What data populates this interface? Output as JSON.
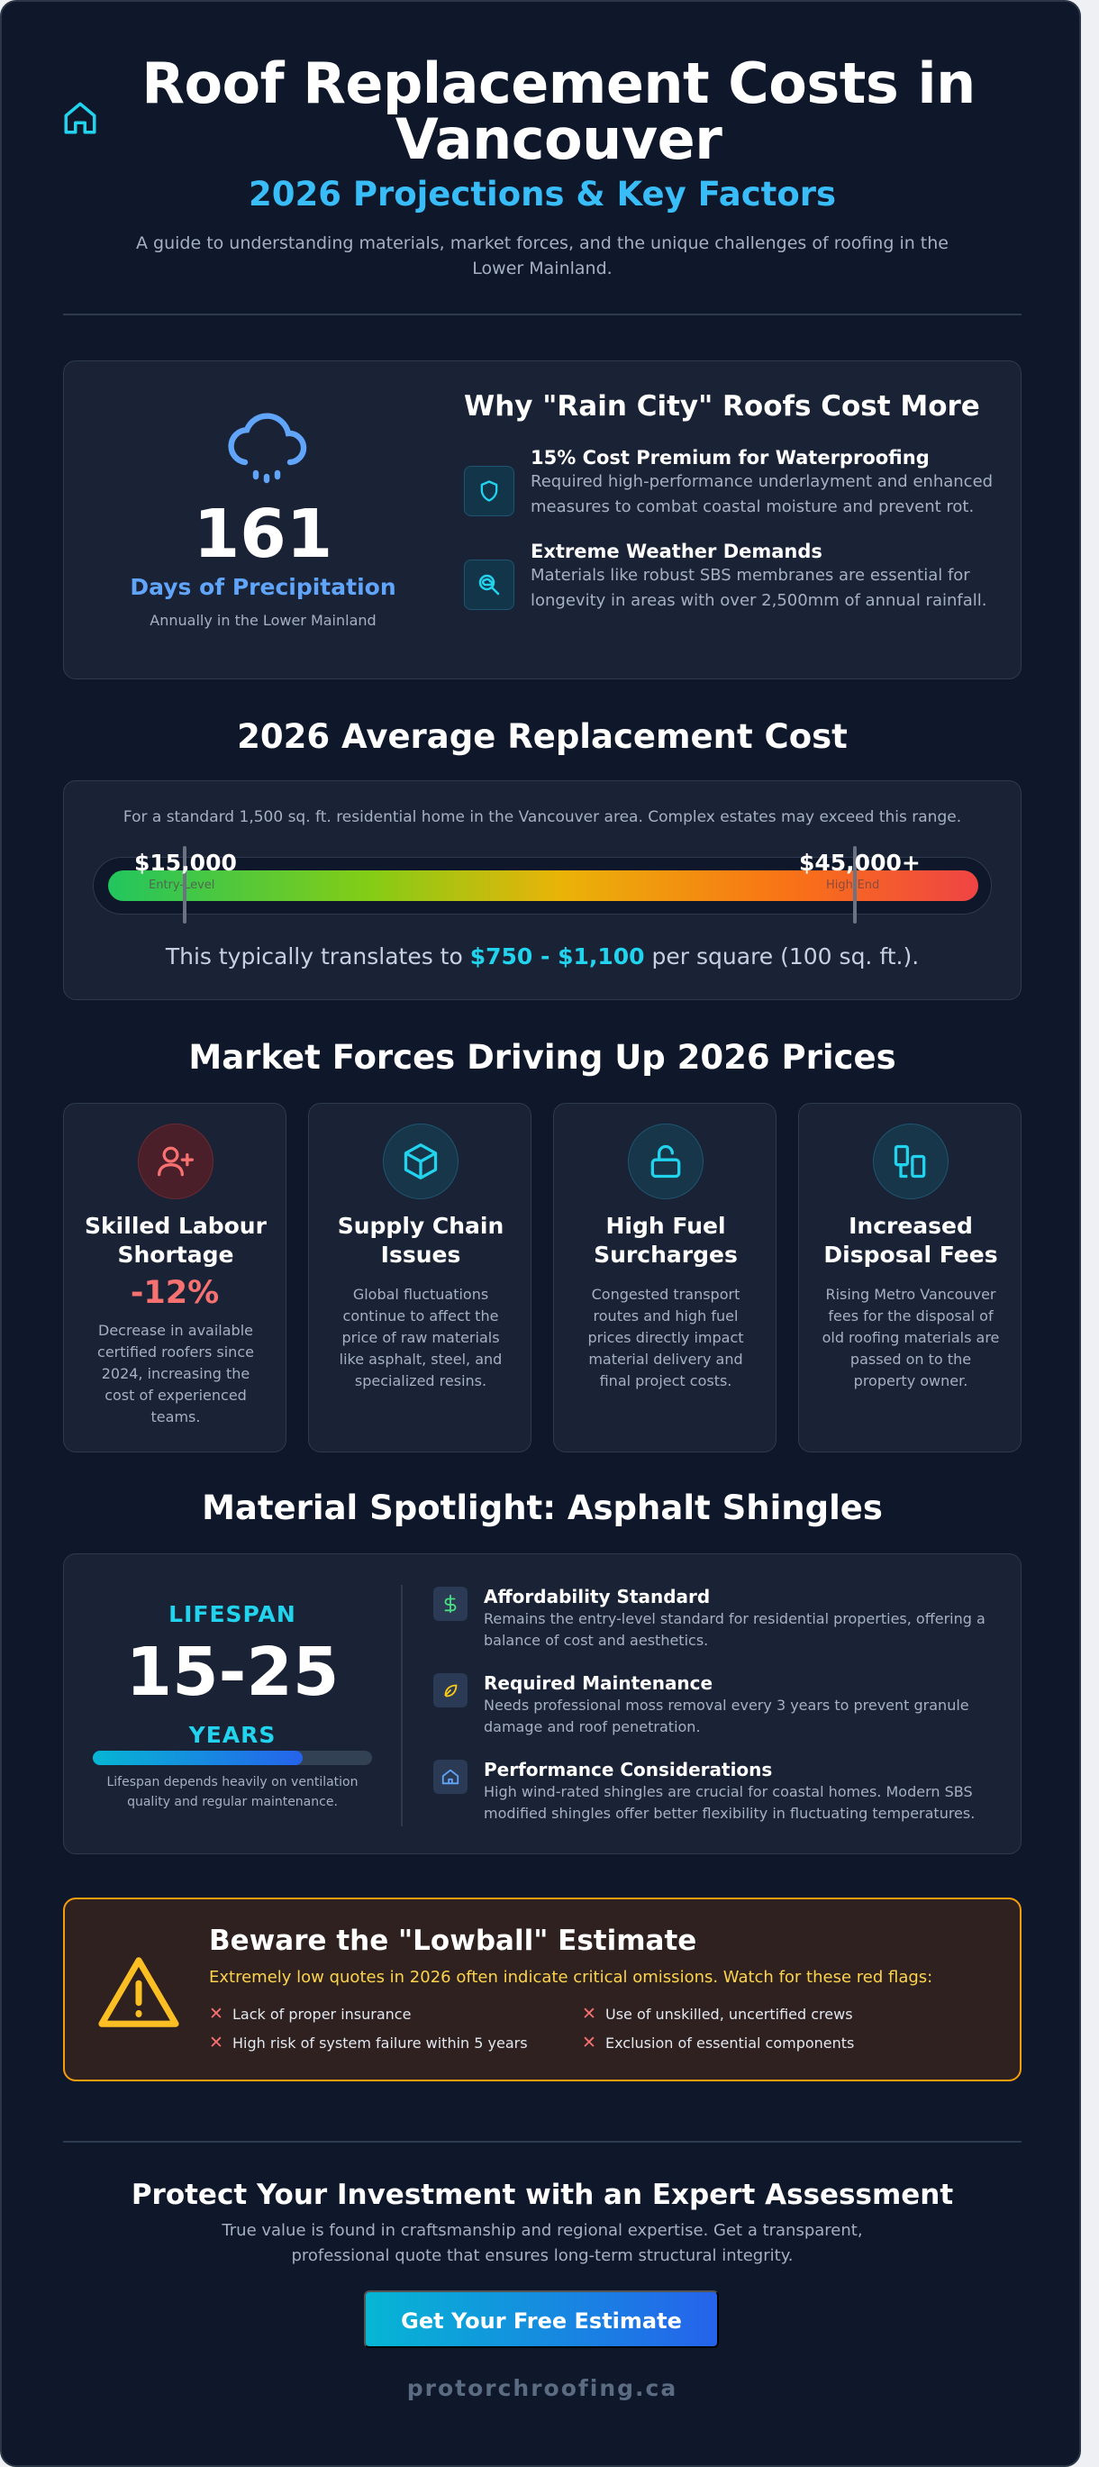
{
  "header": {
    "title": "Roof Replacement Costs in Vancouver",
    "subtitle": "2026 Projections & Key Factors",
    "description": "A guide to understanding materials, market forces, and the unique challenges of roofing in the Lower Mainland."
  },
  "rain": {
    "days": "161",
    "days_label": "Days of Precipitation",
    "days_note": "Annually in the Lower Mainland",
    "heading": "Why \"Rain City\" Roofs Cost More",
    "facts": [
      {
        "title": "15% Cost Premium for Waterproofing",
        "text": "Required high-performance underlayment and enhanced measures to combat coastal moisture and prevent rot."
      },
      {
        "title": "Extreme Weather Demands",
        "text": "Materials like robust SBS membranes are essential for longevity in areas with over 2,500mm of annual rainfall."
      }
    ]
  },
  "cost": {
    "heading": "2026 Average Replacement Cost",
    "note": "For a standard 1,500 sq. ft. residential home in the Vancouver area. Complex estates may exceed this range.",
    "low": "$15,000",
    "low_tier": "Entry-Level",
    "high": "$45,000+",
    "high_tier": "High-End",
    "sqft_prefix": "This typically translates to",
    "sqft_range": "$750 - $1,100",
    "sqft_suffix": "per square (100 sq. ft.)."
  },
  "forces": {
    "heading": "Market Forces Driving Up 2026 Prices",
    "items": [
      {
        "title": "Skilled Labour Shortage",
        "stat": "-12%",
        "text": "Decrease in available certified roofers since 2024, increasing the cost of experienced teams."
      },
      {
        "title": "Supply Chain Issues",
        "text": "Global fluctuations continue to affect the price of raw materials like asphalt, steel, and specialized resins."
      },
      {
        "title": "High Fuel Surcharges",
        "text": "Congested transport routes and high fuel prices directly impact material delivery and final project costs."
      },
      {
        "title": "Increased Disposal Fees",
        "text": "Rising Metro Vancouver fees for the disposal of old roofing materials are passed on to the property owner."
      }
    ]
  },
  "asphalt": {
    "heading": "Material Spotlight: Asphalt Shingles",
    "lifespan_label": "LIFESPAN",
    "lifespan": "15-25",
    "lifespan_unit": "YEARS",
    "lifespan_fill": 0.75,
    "lifespan_note": "Lifespan depends heavily on ventilation quality and regular maintenance.",
    "features": [
      {
        "title": "Affordability Standard",
        "text": "Remains the entry-level standard for residential properties, offering a balance of cost and aesthetics."
      },
      {
        "title": "Required Maintenance",
        "text": "Needs professional moss removal every 3 years to prevent granule damage and roof penetration."
      },
      {
        "title": "Performance Considerations",
        "text": "High wind-rated shingles are crucial for coastal homes. Modern SBS modified shingles offer better flexibility in fluctuating temperatures."
      }
    ]
  },
  "warning": {
    "title": "Beware the \"Lowball\" Estimate",
    "subtitle": "Extremely low quotes in 2026 often indicate critical omissions. Watch for these red flags:",
    "flags": [
      "Lack of proper insurance",
      "Use of unskilled, uncertified crews",
      "High risk of system failure within 5 years",
      "Exclusion of essential components"
    ]
  },
  "cta": {
    "title": "Protect Your Investment with an Expert Assessment",
    "description": "True value is found in craftsmanship and regional expertise. Get a transparent, professional quote that ensures long-term structural integrity.",
    "button": "Get Your Free Estimate",
    "domain": "protorchroofing.ca"
  },
  "colors": {
    "accent_cyan": "#22d3ee",
    "accent_blue": "#2563eb",
    "background": "#0f172a",
    "warning": "#f59e0b",
    "danger": "#f87171"
  }
}
